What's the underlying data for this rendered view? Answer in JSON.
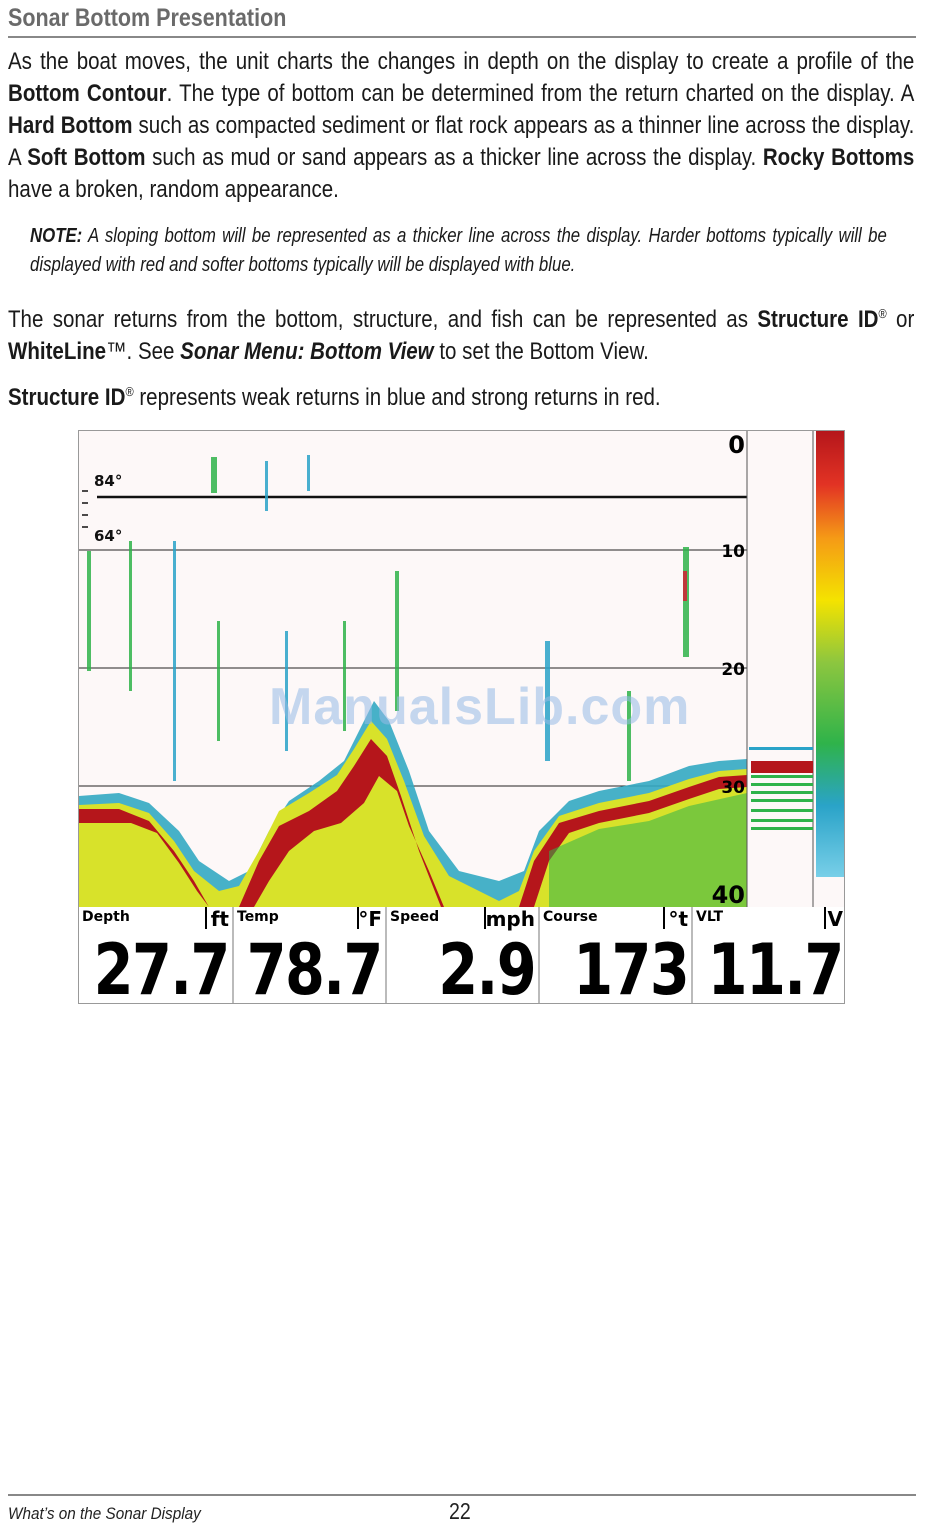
{
  "heading": "Sonar Bottom Presentation",
  "para1": {
    "t1": "As the boat moves, the unit charts the changes in depth on the display to create a profile of the ",
    "b1": "Bottom Contour",
    "t2": ". The type of bottom can be determined from the return charted on the display. A ",
    "b2": "Hard Bottom",
    "t3": " such as compacted sediment or flat rock appears as a thinner line across the display. A ",
    "b3": "Soft Bottom",
    "t4": " such as mud or sand appears as a thicker line across the display. ",
    "b4": "Rocky Bottoms",
    "t5": " have a broken, random appearance."
  },
  "note": {
    "label": "NOTE:",
    "text": " A sloping bottom will be represented as a thicker line across the display. Harder bottoms typically will be displayed with red and softer bottoms typically will be displayed with blue."
  },
  "para2": {
    "t1": "The sonar returns from the bottom, structure, and fish can be represented as ",
    "b1": "Structure ID",
    "reg": "®",
    "t2": " or ",
    "b2": "WhiteLine",
    "tm": "™",
    "t3": ". See ",
    "link": "Sonar Menu: Bottom View",
    "t4": " to set the Bottom View."
  },
  "para3": {
    "b1": "Structure ID",
    "reg": "®",
    "t1": " represents weak returns in blue and strong returns in red."
  },
  "sonar": {
    "depth_scale": [
      "0",
      "10",
      "20",
      "30",
      "40"
    ],
    "temp_markers": [
      "84°",
      "64°"
    ],
    "colors": {
      "background": "#fdf8f8",
      "strong": "#b5161b",
      "medium": "#f4e300",
      "weak": "#2aa3c8",
      "green": "#2fb34a"
    },
    "readouts": [
      {
        "label": "Depth",
        "unit": "ft",
        "value": "27.7"
      },
      {
        "label": "Temp",
        "unit": "°F",
        "value": "78.7"
      },
      {
        "label": "Speed",
        "unit": "mph",
        "value": "2.9"
      },
      {
        "label": "Course",
        "unit": "°t",
        "value": "173"
      },
      {
        "label": "VLT",
        "unit": "V",
        "value": "11.7"
      }
    ]
  },
  "watermark": "ManualsLib.com",
  "footer": {
    "section": "What’s on the Sonar Display",
    "page": "22"
  }
}
